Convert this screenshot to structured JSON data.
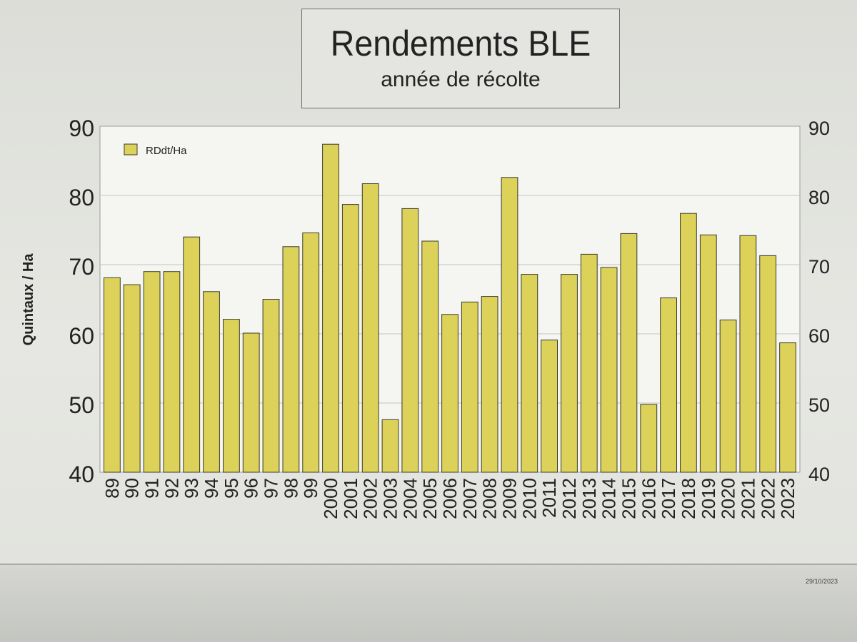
{
  "chart_data": {
    "type": "bar",
    "title": "Rendements BLE",
    "subtitle": "année de récolte",
    "ylabel": "Quintaux / Ha",
    "ylim": [
      40,
      90
    ],
    "yticks": [
      40,
      50,
      60,
      70,
      80,
      90
    ],
    "grid": true,
    "secondary_y_axis": true,
    "legend_position": "top-left",
    "categories": [
      "89",
      "90",
      "91",
      "92",
      "93",
      "94",
      "95",
      "96",
      "97",
      "98",
      "99",
      "2000",
      "2001",
      "2002",
      "2003",
      "2004",
      "2005",
      "2006",
      "2007",
      "2008",
      "2009",
      "2010",
      "2011",
      "2012",
      "2013",
      "2014",
      "2015",
      "2016",
      "2017",
      "2018",
      "2019",
      "2020",
      "2021",
      "2022",
      "2023"
    ],
    "series": [
      {
        "name": "RDdt/Ha",
        "color": "#dcd25a",
        "values": [
          68.1,
          67.1,
          69.0,
          69.0,
          74.0,
          66.1,
          62.1,
          60.1,
          65.0,
          72.6,
          74.6,
          87.4,
          78.7,
          81.7,
          47.6,
          78.1,
          73.4,
          62.8,
          64.6,
          65.4,
          82.6,
          68.6,
          59.1,
          68.6,
          71.5,
          69.6,
          74.5,
          49.8,
          65.2,
          77.4,
          74.3,
          62.0,
          74.2,
          71.3,
          58.7
        ]
      }
    ]
  },
  "footer": {
    "date": "29/10/2023"
  }
}
